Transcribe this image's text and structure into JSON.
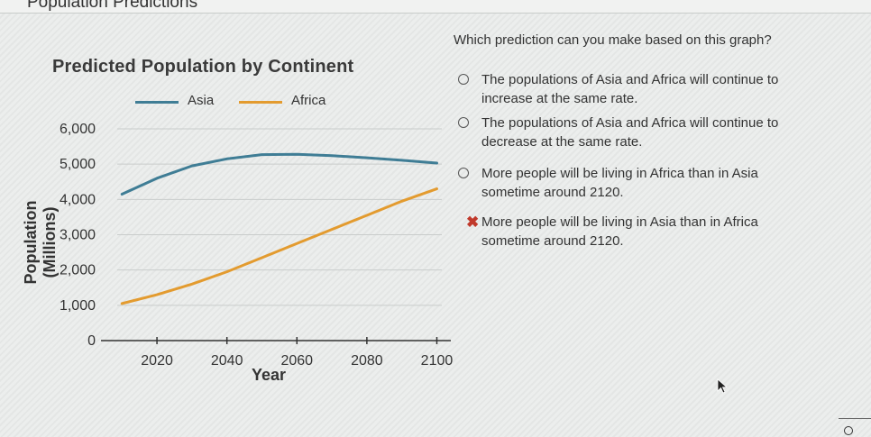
{
  "header": {
    "title": "Population Predictions"
  },
  "chart_data": {
    "type": "line",
    "title": "Predicted Population by Continent",
    "xlabel": "Year",
    "ylabel": "Population (Millions)",
    "x": [
      2010,
      2020,
      2030,
      2040,
      2050,
      2060,
      2070,
      2080,
      2090,
      2100
    ],
    "xticks": [
      2020,
      2040,
      2060,
      2080,
      2100
    ],
    "yticks": [
      0,
      1000,
      2000,
      3000,
      4000,
      5000,
      6000
    ],
    "ytick_labels": [
      "0",
      "1,000",
      "2,000",
      "3,000",
      "4,000",
      "5,000",
      "6,000"
    ],
    "xlim": [
      2004,
      2104
    ],
    "ylim": [
      0,
      6000
    ],
    "grid": true,
    "legend_position": "top",
    "series": [
      {
        "name": "Asia",
        "color": "#3f7d95",
        "values": [
          4150,
          4600,
          4950,
          5150,
          5270,
          5280,
          5240,
          5180,
          5110,
          5030
        ]
      },
      {
        "name": "Africa",
        "color": "#e39b2f",
        "values": [
          1050,
          1300,
          1600,
          1950,
          2350,
          2750,
          3150,
          3550,
          3950,
          4300
        ]
      }
    ]
  },
  "question": {
    "prompt": "Which prediction can you make based on this graph?",
    "options": [
      {
        "lines": [
          "The populations of Asia and Africa will continue to",
          "increase at the same rate."
        ],
        "state": "radio"
      },
      {
        "lines": [
          "The populations of Asia and Africa will continue to",
          "decrease at the same rate."
        ],
        "state": "radio"
      },
      {
        "lines": [
          "More people will be living in Africa than in Asia",
          "sometime around 2120."
        ],
        "state": "radio"
      },
      {
        "lines": [
          "More people will be living in Asia than in Africa",
          "sometime around 2120."
        ],
        "state": "wrong"
      }
    ]
  },
  "icons": {
    "wrong_mark": "x-mark-icon",
    "cursor": "mouse-cursor-icon"
  }
}
